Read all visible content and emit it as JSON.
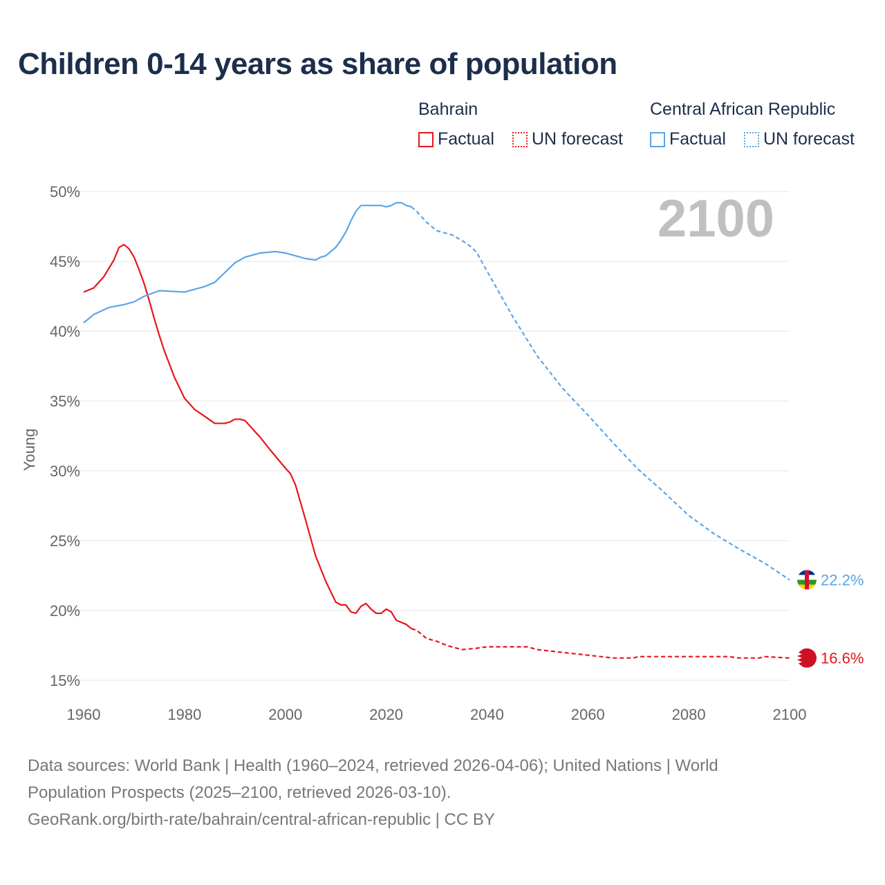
{
  "chart_data": {
    "type": "line",
    "title": "Children 0-14 years as share of population",
    "ylabel": "Young",
    "xlabel": "",
    "xlim": [
      1960,
      2100
    ],
    "ylim": [
      15,
      50
    ],
    "xticks": [
      "1960",
      "1980",
      "2000",
      "2020",
      "2040",
      "2060",
      "2080",
      "2100"
    ],
    "yticks": [
      "15%",
      "20%",
      "25%",
      "30%",
      "35%",
      "40%",
      "45%",
      "50%"
    ],
    "year_label": "2100",
    "grid": true,
    "legend_groups": [
      {
        "name": "Bahrain",
        "factual": "Factual",
        "forecast": "UN forecast",
        "color": "#e8141b"
      },
      {
        "name": "Central African Republic",
        "factual": "Factual",
        "forecast": "UN forecast",
        "color": "#5aa5e8"
      }
    ],
    "series": [
      {
        "name": "Bahrain",
        "color": "#e8141b",
        "end_label": "16.6%",
        "factual": [
          [
            1960,
            42.8
          ],
          [
            1962,
            43.1
          ],
          [
            1964,
            43.9
          ],
          [
            1966,
            45.1
          ],
          [
            1967,
            46.0
          ],
          [
            1968,
            46.2
          ],
          [
            1969,
            45.9
          ],
          [
            1970,
            45.3
          ],
          [
            1971,
            44.4
          ],
          [
            1972,
            43.4
          ],
          [
            1973,
            42.2
          ],
          [
            1974,
            40.9
          ],
          [
            1975,
            39.7
          ],
          [
            1976,
            38.6
          ],
          [
            1978,
            36.7
          ],
          [
            1980,
            35.2
          ],
          [
            1982,
            34.4
          ],
          [
            1984,
            33.9
          ],
          [
            1986,
            33.4
          ],
          [
            1988,
            33.4
          ],
          [
            1989,
            33.5
          ],
          [
            1990,
            33.7
          ],
          [
            1991,
            33.7
          ],
          [
            1992,
            33.6
          ],
          [
            1993,
            33.2
          ],
          [
            1995,
            32.4
          ],
          [
            1997,
            31.5
          ],
          [
            2000,
            30.2
          ],
          [
            2001,
            29.8
          ],
          [
            2002,
            29.0
          ],
          [
            2004,
            26.5
          ],
          [
            2006,
            23.9
          ],
          [
            2008,
            22.1
          ],
          [
            2010,
            20.6
          ],
          [
            2011,
            20.4
          ],
          [
            2012,
            20.4
          ],
          [
            2013,
            19.9
          ],
          [
            2014,
            19.8
          ],
          [
            2015,
            20.3
          ],
          [
            2016,
            20.5
          ],
          [
            2017,
            20.1
          ],
          [
            2018,
            19.8
          ],
          [
            2019,
            19.8
          ],
          [
            2020,
            20.1
          ],
          [
            2021,
            19.9
          ],
          [
            2022,
            19.3
          ],
          [
            2024,
            19.0
          ],
          [
            2025,
            18.7
          ]
        ],
        "forecast": [
          [
            2025,
            18.7
          ],
          [
            2026,
            18.6
          ],
          [
            2028,
            18.0
          ],
          [
            2030,
            17.8
          ],
          [
            2032,
            17.5
          ],
          [
            2035,
            17.2
          ],
          [
            2038,
            17.3
          ],
          [
            2040,
            17.4
          ],
          [
            2048,
            17.4
          ],
          [
            2050,
            17.2
          ],
          [
            2055,
            17.0
          ],
          [
            2060,
            16.8
          ],
          [
            2065,
            16.6
          ],
          [
            2069,
            16.6
          ],
          [
            2070,
            16.7
          ],
          [
            2080,
            16.7
          ],
          [
            2088,
            16.7
          ],
          [
            2090,
            16.6
          ],
          [
            2094,
            16.6
          ],
          [
            2095,
            16.7
          ],
          [
            2100,
            16.6
          ]
        ]
      },
      {
        "name": "Central African Republic",
        "color": "#5aa5e8",
        "end_label": "22.2%",
        "factual": [
          [
            1960,
            40.6
          ],
          [
            1962,
            41.2
          ],
          [
            1965,
            41.7
          ],
          [
            1968,
            41.9
          ],
          [
            1970,
            42.1
          ],
          [
            1972,
            42.5
          ],
          [
            1975,
            42.9
          ],
          [
            1980,
            42.8
          ],
          [
            1982,
            43.0
          ],
          [
            1984,
            43.2
          ],
          [
            1986,
            43.5
          ],
          [
            1988,
            44.2
          ],
          [
            1990,
            44.9
          ],
          [
            1992,
            45.3
          ],
          [
            1995,
            45.6
          ],
          [
            1998,
            45.7
          ],
          [
            2000,
            45.6
          ],
          [
            2002,
            45.4
          ],
          [
            2004,
            45.2
          ],
          [
            2006,
            45.1
          ],
          [
            2007,
            45.3
          ],
          [
            2008,
            45.4
          ],
          [
            2009,
            45.7
          ],
          [
            2010,
            46.0
          ],
          [
            2011,
            46.5
          ],
          [
            2012,
            47.1
          ],
          [
            2013,
            47.9
          ],
          [
            2014,
            48.6
          ],
          [
            2015,
            49.0
          ],
          [
            2019,
            49.0
          ],
          [
            2020,
            48.9
          ],
          [
            2021,
            49.0
          ],
          [
            2022,
            49.2
          ],
          [
            2023,
            49.2
          ],
          [
            2024,
            49.0
          ],
          [
            2025,
            48.9
          ]
        ],
        "forecast": [
          [
            2025,
            48.9
          ],
          [
            2026,
            48.6
          ],
          [
            2028,
            47.8
          ],
          [
            2030,
            47.2
          ],
          [
            2033,
            46.9
          ],
          [
            2035,
            46.5
          ],
          [
            2037,
            46.0
          ],
          [
            2038,
            45.6
          ],
          [
            2040,
            44.3
          ],
          [
            2045,
            41.1
          ],
          [
            2050,
            38.2
          ],
          [
            2055,
            35.9
          ],
          [
            2060,
            34.0
          ],
          [
            2065,
            32.0
          ],
          [
            2070,
            30.1
          ],
          [
            2075,
            28.5
          ],
          [
            2080,
            26.8
          ],
          [
            2085,
            25.5
          ],
          [
            2090,
            24.4
          ],
          [
            2095,
            23.4
          ],
          [
            2100,
            22.2
          ]
        ]
      }
    ]
  },
  "footer": {
    "line1": "Data sources: World Bank | Health (1960–2024, retrieved 2026-04-06); United Nations | World",
    "line2": "Population Prospects (2025–2100, retrieved 2026-03-10).",
    "line3": "GeoRank.org/birth-rate/bahrain/central-african-republic | CC BY"
  }
}
